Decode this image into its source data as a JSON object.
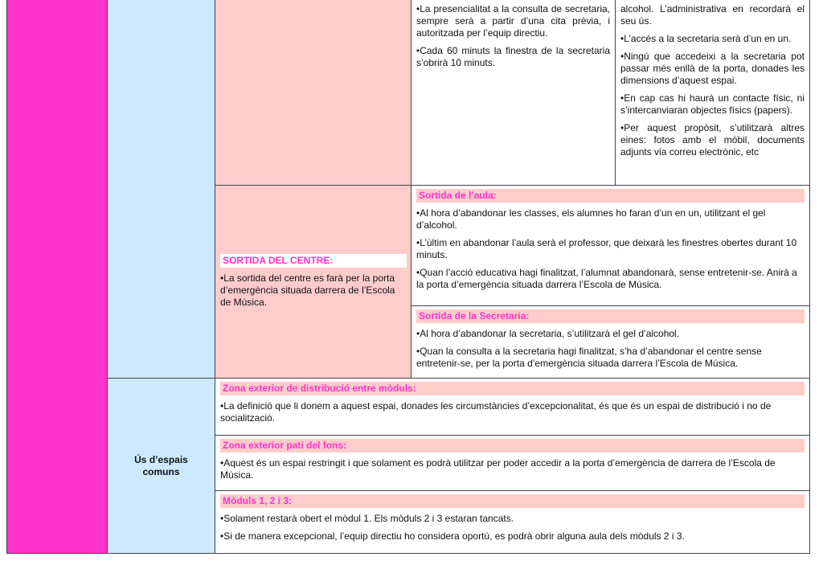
{
  "colors": {
    "category": "#ff33cc",
    "subcategory": "#cce9ff",
    "highlight": "#ffcccc",
    "heading_text": "#ff33cc"
  },
  "secretaria": {
    "left": [
      "•La presencialitat a la consulta de secretaria, sempre serà a partir d’una cita prèvia, i autoritzada per l’equip directiu.",
      "•Cada 60 minuts la finestra de la secretaria s’obrirà 10 minuts."
    ],
    "right": [
      "alcohol. L’administrativa en recordarà el seu ús.",
      "•L’accés a la secretaria serà d’un en un.",
      "•Ningú que accedeixi a la secretaria pot passar més enllà de la porta, donades les dimensions d’aquest espai.",
      "•En cap cas hi haurà un contacte físic, ni s’intercanviaran objectes físics (papers).",
      "•Per aquest propòsit, s’utilitzarà altres eines: fotos amb el mòbil, documents adjunts via correu electrònic, etc"
    ]
  },
  "sortida_centre": {
    "heading": "SORTIDA DEL CENTRE:",
    "text": "•La sortida del centre es farà per la porta d’emergència situada darrera de l’Escola de Música."
  },
  "sortida_aula": {
    "heading": "Sortida de l’aula:",
    "items": [
      "•Al hora d’abandonar les classes, els alumnes ho faran d’un en un, utilitzant el gel d’alcohol.",
      "•L’últim en abandonar l’aula serà el professor, que deixarà les finestres obertes durant 10 minuts.",
      "•Quan l’acció educativa hagi finalitzat, l’alumnat abandonarà, sense entretenir-se. Anirà a la porta d’emergència situada darrera l’Escola de Música."
    ]
  },
  "sortida_secretaria": {
    "heading": "Sortida de la Secretaria:",
    "items": [
      "•Al hora d’abandonar la secretaria, s’utilitzarà el gel d’alcohol.",
      "•Quan la consulta a la secretaria hagi finalitzat, s’ha d’abandonar el centre sense entretenir-se, per la porta d’emergència situada darrera l’Escola de Música."
    ]
  },
  "espais": {
    "label": "Ús d’espais comuns",
    "sections": [
      {
        "heading": "Zona exterior de distribució entre mòduls:",
        "items": [
          "•La definició que li donem a aquest espai, donades les circumstàncies d’excepcionalitat, és que és un espai de distribució i no de socialització."
        ]
      },
      {
        "heading": "Zona exterior pati del fons:",
        "items": [
          "•Aquest és un espai restringit i que solament es podrà utilitzar per poder accedir a la porta d’emergència de darrera de l’Escola de Música."
        ]
      },
      {
        "heading": "Mòduls 1, 2 i 3:",
        "items": [
          "•Solament restarà obert el mòdul 1. Els mòduls 2 i 3 estaran tancats.",
          "•Si de manera excepcional, l’equip directiu ho considera oportú, es podrà obrir alguna aula dels mòduls 2 i 3."
        ]
      }
    ]
  }
}
